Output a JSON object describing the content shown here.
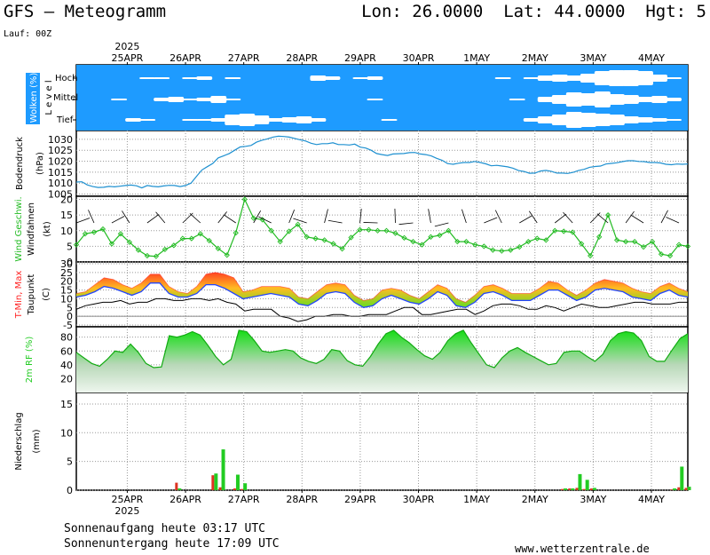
{
  "header": {
    "title": "GFS — Meteogramm",
    "coords": "Lon: 26.0000  Lat: 44.0000  Hgt: 5",
    "lauf": "Lauf: 00Z"
  },
  "footer": {
    "sunrise": "Sonnenaufgang heute 03:17 UTC",
    "sunset": "Sonnenuntergang heute 17:09 UTC",
    "site": "www.wetterzentrale.de"
  },
  "colors": {
    "cloud_sky": "#1e9bff",
    "pressure_line": "#1e90d0",
    "wind_speed": "#22bb22",
    "tmax": "#ff2222",
    "tmin": "#2244ff",
    "rh_fill": "#22cc22",
    "precip_green": "#22cc22",
    "precip_red": "#dd3322"
  },
  "chart_data": {
    "type": "meteogram",
    "year_label": "2025",
    "dates": [
      "25APR",
      "26APR",
      "27APR",
      "28APR",
      "29APR",
      "30APR",
      "1MAY",
      "2MAY",
      "3MAY",
      "4MAY"
    ],
    "x_range_hours": [
      0,
      252
    ],
    "panels": [
      {
        "id": "clouds",
        "ylabel": "Wolken (%)",
        "ylabel2": "L e v e l",
        "levels": [
          "Hoch",
          "Mittel",
          "Tief"
        ],
        "hoch": [
          0,
          0,
          0,
          0,
          0,
          10,
          10,
          0,
          10,
          20,
          0,
          10,
          0,
          0,
          0,
          0,
          0,
          30,
          20,
          0,
          10,
          20,
          0,
          0,
          0,
          0,
          0,
          0,
          0,
          0,
          10,
          0,
          10,
          30,
          40,
          30,
          50,
          80,
          90,
          90,
          80,
          40,
          10,
          0
        ],
        "mittel": [
          0,
          0,
          0,
          10,
          0,
          0,
          20,
          30,
          10,
          20,
          40,
          10,
          0,
          0,
          0,
          0,
          0,
          0,
          0,
          0,
          0,
          10,
          0,
          0,
          0,
          0,
          0,
          0,
          0,
          0,
          0,
          10,
          0,
          30,
          50,
          80,
          70,
          90,
          60,
          50,
          30,
          40,
          20,
          0
        ],
        "tief": [
          0,
          0,
          0,
          0,
          20,
          10,
          0,
          0,
          10,
          10,
          20,
          60,
          70,
          50,
          20,
          30,
          40,
          20,
          0,
          0,
          0,
          0,
          10,
          0,
          0,
          0,
          0,
          0,
          0,
          0,
          0,
          0,
          20,
          40,
          60,
          90,
          80,
          70,
          60,
          40,
          30,
          20,
          10,
          0
        ]
      },
      {
        "id": "pressure",
        "ylabel": "Bodendruck",
        "ylabel2": "(hPa)",
        "yticks": [
          1005,
          1010,
          1015,
          1020,
          1025,
          1030
        ],
        "ylim": [
          1004,
          1034
        ],
        "values": [
          1010.5,
          1010.6,
          1009.2,
          1008.4,
          1008.0,
          1008.1,
          1008.5,
          1008.3,
          1008.6,
          1008.9,
          1009.1,
          1008.8,
          1007.8,
          1008.9,
          1008.5,
          1008.3,
          1008.7,
          1009.0,
          1008.9,
          1008.4,
          1008.9,
          1010.0,
          1013.0,
          1016.0,
          1017.5,
          1019.0,
          1021.5,
          1022.5,
          1023.5,
          1025.0,
          1026.5,
          1026.8,
          1027.2,
          1028.7,
          1029.6,
          1030.2,
          1031.0,
          1031.4,
          1031.3,
          1031.0,
          1030.4,
          1029.8,
          1029.2,
          1028.2,
          1027.6,
          1028.0,
          1028.0,
          1028.4,
          1027.6,
          1027.6,
          1027.4,
          1027.8,
          1026.4,
          1026.0,
          1025.0,
          1023.5,
          1023.0,
          1022.6,
          1023.3,
          1023.4,
          1023.5,
          1023.9,
          1024.0,
          1023.3,
          1023.0,
          1022.4,
          1021.3,
          1020.4,
          1018.9,
          1018.6,
          1019.1,
          1019.4,
          1019.4,
          1019.9,
          1019.4,
          1018.8,
          1017.9,
          1018.1,
          1017.8,
          1017.4,
          1016.8,
          1015.7,
          1015.3,
          1014.5,
          1014.6,
          1015.5,
          1015.8,
          1015.4,
          1014.6,
          1014.6,
          1014.4,
          1014.9,
          1015.8,
          1016.3,
          1017.2,
          1017.6,
          1017.8,
          1018.7,
          1019.0,
          1019.3,
          1019.8,
          1020.2,
          1020.2,
          1019.9,
          1019.8,
          1019.4,
          1019.4,
          1019.2,
          1018.6,
          1018.4,
          1018.7,
          1018.6,
          1018.7
        ]
      },
      {
        "id": "wind",
        "ylabel": "Wind Geschwi.",
        "ylabel2": "Windfahnen",
        "ylabel3": "(kt)",
        "yticks": [
          0,
          5,
          10,
          15,
          20
        ],
        "ylim": [
          0,
          21
        ],
        "values": [
          5.5,
          9.0,
          9.5,
          10.5,
          5.8,
          9.0,
          6.3,
          3.8,
          2.0,
          1.8,
          4.0,
          5.3,
          7.5,
          7.5,
          9.0,
          6.8,
          4.3,
          2.2,
          9.3,
          20.0,
          14.0,
          13.5,
          10.0,
          6.5,
          9.8,
          12.0,
          8.0,
          7.5,
          7.0,
          5.8,
          4.2,
          7.8,
          10.3,
          10.3,
          10.0,
          10.0,
          9.2,
          7.7,
          6.5,
          5.5,
          8.0,
          8.5,
          10.0,
          6.5,
          6.5,
          5.5,
          5.0,
          3.8,
          3.5,
          3.8,
          4.8,
          6.5,
          7.5,
          7.0,
          10.0,
          9.8,
          9.5,
          5.8,
          2.0,
          8.0,
          15.0,
          7.0,
          6.5,
          6.5,
          4.8,
          6.5,
          2.5,
          2.0,
          5.5,
          5.0
        ]
      },
      {
        "id": "temperature",
        "ylabel": "T-Min, Max",
        "ylabel2": "Taupunkt",
        "ylabel3": "(C)",
        "yticks": [
          -5,
          0,
          5,
          10,
          15,
          20,
          25,
          30
        ],
        "ylim": [
          -6,
          31
        ],
        "tmax": [
          13,
          14,
          18,
          22,
          21,
          18,
          16,
          19,
          24,
          24,
          17,
          14,
          13,
          17,
          24,
          25,
          24,
          22,
          14,
          15,
          17,
          17,
          17,
          16,
          11,
          10,
          14,
          18,
          19,
          18,
          12,
          9,
          10,
          15,
          16,
          15,
          12,
          10,
          14,
          18,
          16,
          10,
          8,
          12,
          17,
          18,
          16,
          13,
          13,
          13,
          16,
          20,
          19,
          15,
          12,
          15,
          19,
          21,
          20,
          19,
          16,
          14,
          13,
          17,
          19,
          16,
          14
        ],
        "tmin": [
          11,
          12,
          14,
          17,
          16,
          14,
          12,
          14,
          19,
          19,
          13,
          11,
          11,
          13,
          18,
          18,
          16,
          13,
          10,
          11,
          12,
          13,
          12,
          11,
          7,
          6,
          9,
          13,
          14,
          13,
          8,
          5,
          6,
          10,
          12,
          10,
          8,
          7,
          10,
          14,
          12,
          6,
          5,
          8,
          13,
          14,
          12,
          9,
          9,
          9,
          12,
          15,
          15,
          12,
          9,
          11,
          15,
          16,
          15,
          14,
          11,
          10,
          9,
          13,
          15,
          12,
          11
        ],
        "dew": [
          4,
          6,
          7,
          8,
          8,
          9,
          7,
          8,
          8,
          10,
          10,
          9,
          9,
          10,
          10,
          9,
          10,
          8,
          7,
          3,
          4,
          4,
          4,
          0,
          -1,
          -3,
          -2,
          0,
          0,
          1,
          1,
          0,
          0,
          1,
          1,
          1,
          3,
          5,
          5,
          1,
          1,
          2,
          3,
          4,
          4,
          1,
          3,
          6,
          7,
          7,
          6,
          4,
          4,
          6,
          5,
          3,
          5,
          7,
          6,
          5,
          5,
          6,
          7,
          8,
          8,
          7,
          7,
          7,
          8,
          8
        ]
      },
      {
        "id": "rh",
        "ylabel": "2m RF (%)",
        "yticks": [
          20,
          40,
          60,
          80
        ],
        "ylim": [
          0,
          95
        ],
        "values": [
          58,
          50,
          42,
          38,
          48,
          60,
          58,
          70,
          58,
          42,
          36,
          37,
          82,
          80,
          83,
          88,
          83,
          68,
          52,
          40,
          48,
          90,
          88,
          75,
          60,
          58,
          60,
          62,
          60,
          50,
          45,
          42,
          48,
          62,
          60,
          46,
          40,
          38,
          52,
          70,
          85,
          90,
          80,
          72,
          62,
          53,
          48,
          58,
          75,
          85,
          90,
          72,
          56,
          40,
          36,
          50,
          60,
          65,
          58,
          52,
          46,
          40,
          42,
          58,
          60,
          60,
          52,
          45,
          55,
          75,
          85,
          88,
          86,
          75,
          52,
          45,
          45,
          62,
          78,
          85
        ]
      },
      {
        "id": "precip",
        "ylabel": "Niederschlag",
        "ylabel2": "(mm)",
        "yticks": [
          0,
          5,
          10,
          15
        ],
        "ylim": [
          0,
          17
        ],
        "bars": [
          {
            "h": 42,
            "green": 0.3,
            "red": 1.3
          },
          {
            "h": 57,
            "green": 2.9,
            "red": 2.6
          },
          {
            "h": 60,
            "green": 7.1,
            "red": 0.5
          },
          {
            "h": 66,
            "green": 2.7,
            "red": 0.3
          },
          {
            "h": 69,
            "green": 1.2,
            "red": 0.2
          },
          {
            "h": 201,
            "green": 0.3,
            "red": 0.2
          },
          {
            "h": 204,
            "green": 0.3,
            "red": 0.3
          },
          {
            "h": 207,
            "green": 2.8,
            "red": 0.4
          },
          {
            "h": 210,
            "green": 1.8,
            "red": 0.2
          },
          {
            "h": 213,
            "green": 0.4,
            "red": 0.3
          },
          {
            "h": 246,
            "green": 0.3,
            "red": 0.1
          },
          {
            "h": 249,
            "green": 4.1,
            "red": 0.5
          },
          {
            "h": 252,
            "green": 0.6,
            "red": 0.4
          }
        ]
      }
    ]
  }
}
